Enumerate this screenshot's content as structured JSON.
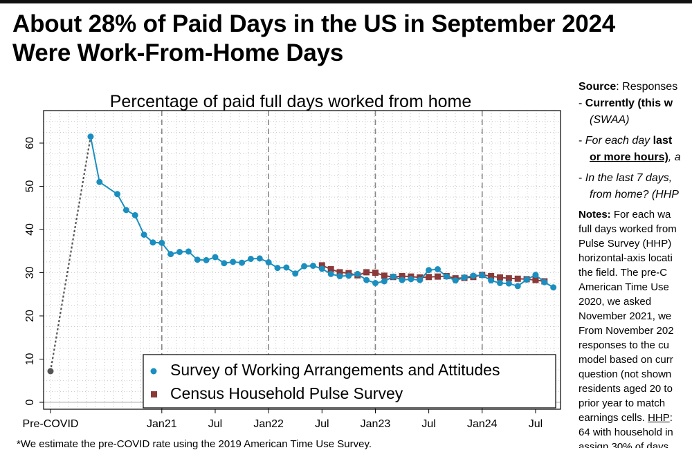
{
  "headline": {
    "line1": "About 28% of Paid Days in the US in September 2024",
    "line2": "Were Work-From-Home Days"
  },
  "chart_data": {
    "type": "line",
    "title": "Percentage of paid full days worked from home",
    "xlabel": "",
    "ylabel": "",
    "ylim": [
      0,
      65
    ],
    "yticks": [
      "0",
      "10",
      "20",
      "30",
      "40",
      "50",
      "60"
    ],
    "x_ticks": [
      "Pre-COVID",
      "Jan21",
      "Jul",
      "Jan22",
      "Jul",
      "Jan23",
      "Jul",
      "Jan24",
      "Jul"
    ],
    "grid": "dotted",
    "legend_position": "bottom-right",
    "pre_covid": {
      "x": "Pre-COVID",
      "y": 7.2,
      "color": "#555555"
    },
    "series": [
      {
        "name": "Survey of Working Arrangements and Attitudes",
        "color": "#1a8fbf",
        "marker": "circle",
        "points": [
          [
            "2020-05",
            61.5
          ],
          [
            "2020-06",
            51.0
          ],
          [
            "2020-08",
            48.2
          ],
          [
            "2020-09",
            44.5
          ],
          [
            "2020-10",
            43.3
          ],
          [
            "2020-11",
            38.8
          ],
          [
            "2020-12",
            37.0
          ],
          [
            "2021-01",
            36.9
          ],
          [
            "2021-02",
            34.3
          ],
          [
            "2021-03",
            34.8
          ],
          [
            "2021-04",
            34.9
          ],
          [
            "2021-05",
            33.0
          ],
          [
            "2021-06",
            32.9
          ],
          [
            "2021-07",
            33.6
          ],
          [
            "2021-08",
            32.2
          ],
          [
            "2021-09",
            32.5
          ],
          [
            "2021-10",
            32.3
          ],
          [
            "2021-11",
            33.2
          ],
          [
            "2021-12",
            33.3
          ],
          [
            "2022-01",
            32.4
          ],
          [
            "2022-02",
            31.1
          ],
          [
            "2022-03",
            31.2
          ],
          [
            "2022-04",
            29.8
          ],
          [
            "2022-05",
            31.5
          ],
          [
            "2022-06",
            31.6
          ],
          [
            "2022-07",
            30.9
          ],
          [
            "2022-08",
            29.7
          ],
          [
            "2022-09",
            29.2
          ],
          [
            "2022-10",
            29.3
          ],
          [
            "2022-11",
            29.7
          ],
          [
            "2022-12",
            28.3
          ],
          [
            "2023-01",
            27.6
          ],
          [
            "2023-02",
            28.0
          ],
          [
            "2023-03",
            29.1
          ],
          [
            "2023-04",
            28.3
          ],
          [
            "2023-05",
            28.5
          ],
          [
            "2023-06",
            28.3
          ],
          [
            "2023-07",
            30.6
          ],
          [
            "2023-08",
            30.8
          ],
          [
            "2023-09",
            29.1
          ],
          [
            "2023-10",
            28.2
          ],
          [
            "2023-11",
            28.9
          ],
          [
            "2023-12",
            29.3
          ],
          [
            "2024-01",
            29.4
          ],
          [
            "2024-02",
            28.2
          ],
          [
            "2024-03",
            27.6
          ],
          [
            "2024-04",
            27.5
          ],
          [
            "2024-05",
            26.9
          ],
          [
            "2024-06",
            28.4
          ],
          [
            "2024-07",
            29.5
          ],
          [
            "2024-08",
            27.8
          ],
          [
            "2024-09",
            26.6
          ]
        ]
      },
      {
        "name": "Census Household Pulse Survey",
        "color": "#8b3a3a",
        "marker": "square",
        "points": [
          [
            "2022-07",
            31.7
          ],
          [
            "2022-08",
            30.8
          ],
          [
            "2022-09",
            30.1
          ],
          [
            "2022-10",
            29.9
          ],
          [
            "2022-11",
            29.4
          ],
          [
            "2022-12",
            30.1
          ],
          [
            "2023-01",
            30.0
          ],
          [
            "2023-02",
            29.3
          ],
          [
            "2023-03",
            29.0
          ],
          [
            "2023-04",
            29.2
          ],
          [
            "2023-05",
            29.1
          ],
          [
            "2023-06",
            28.9
          ],
          [
            "2023-07",
            29.0
          ],
          [
            "2023-08",
            29.1
          ],
          [
            "2023-09",
            29.2
          ],
          [
            "2023-10",
            28.7
          ],
          [
            "2023-11",
            28.8
          ],
          [
            "2023-12",
            29.0
          ],
          [
            "2024-01",
            29.5
          ],
          [
            "2024-02",
            29.2
          ],
          [
            "2024-03",
            28.9
          ],
          [
            "2024-04",
            28.7
          ],
          [
            "2024-05",
            28.6
          ],
          [
            "2024-06",
            28.5
          ],
          [
            "2024-07",
            28.3
          ],
          [
            "2024-08",
            28.0
          ]
        ]
      }
    ]
  },
  "footnote": "*We estimate the pre-COVID rate using the 2019 American Time Use Survey.",
  "side": {
    "source_label": "Source",
    "source_text": ": Responses",
    "bullet1_a": "Currently (this w",
    "bullet1_b": "(SWAA)",
    "bullet2_a": "For each day ",
    "bullet2_a_bold": "last",
    "bullet2_b": "or more hours)",
    "bullet2_b_rest": ", a",
    "bullet3_a": "In the last 7 days,",
    "bullet3_b": "from home? (HHP",
    "notes_label": "Notes:",
    "notes_lines": [
      " For each wa",
      "full days worked from",
      "Pulse Survey (HHP)",
      "horizontal-axis locati",
      "the field. The pre-C",
      "American Time Use",
      "2020,    we    asked",
      "November 2021, we",
      "From November 202",
      "responses to the cu",
      "model based on curr",
      "question (not shown",
      "residents aged 20 to",
      "prior year to match",
      "earnings cells. ",
      "64 with household in",
      "assign 30% of days"
    ],
    "hhp_label": "HHP",
    "hhp_suffix": ":"
  }
}
